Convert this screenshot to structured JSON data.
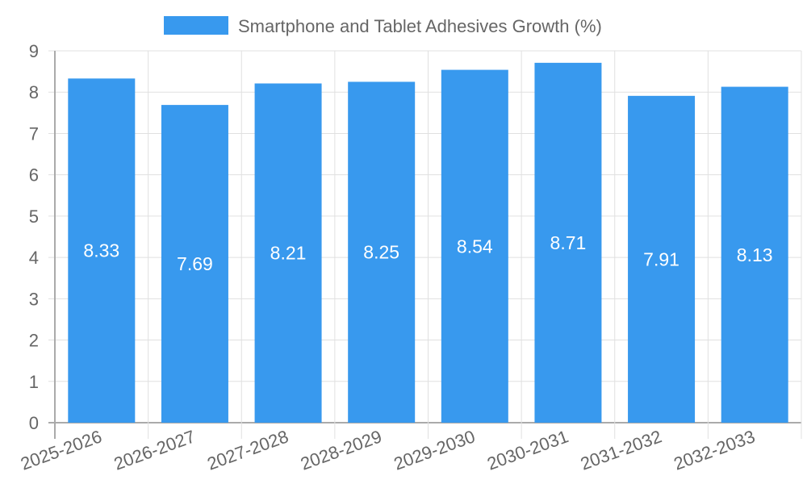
{
  "chart_data": {
    "type": "bar",
    "title": "",
    "legend": [
      {
        "label": "Smartphone and Tablet Adhesives Growth (%)",
        "color": "#3899ee"
      }
    ],
    "legend_position": "top-center",
    "categories": [
      "2025-2026",
      "2026-2027",
      "2027-2028",
      "2028-2029",
      "2029-2030",
      "2030-2031",
      "2031-2032",
      "2032-2033"
    ],
    "series": [
      {
        "name": "Smartphone and Tablet Adhesives Growth (%)",
        "values": [
          8.33,
          7.69,
          8.21,
          8.25,
          8.54,
          8.71,
          7.91,
          8.13
        ]
      }
    ],
    "value_labels": [
      "8.33",
      "7.69",
      "8.21",
      "8.25",
      "8.54",
      "8.71",
      "7.91",
      "8.13"
    ],
    "xlabel": "",
    "ylabel": "",
    "ylim": [
      0,
      9
    ],
    "yticks": [
      "0",
      "1",
      "2",
      "3",
      "4",
      "5",
      "6",
      "7",
      "8",
      "9"
    ],
    "grid": true,
    "colors": {
      "bar": "#3899ee",
      "grid": "#e0e0e0",
      "axis": "#aaaaaa",
      "text": "#666666",
      "label": "#ffffff"
    }
  }
}
